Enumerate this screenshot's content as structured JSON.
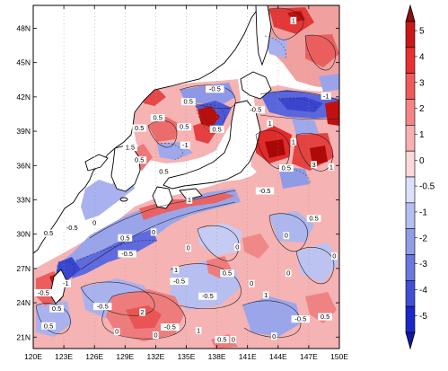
{
  "map": {
    "lon_range": [
      120,
      150
    ],
    "lat_range": [
      20,
      50
    ],
    "lon_ticks": [
      {
        "value": 120,
        "label": "120E"
      },
      {
        "value": 123,
        "label": "123E"
      },
      {
        "value": 126,
        "label": "126E"
      },
      {
        "value": 129,
        "label": "129E"
      },
      {
        "value": 132,
        "label": "132E"
      },
      {
        "value": 135,
        "label": "135E"
      },
      {
        "value": 138,
        "label": "138E"
      },
      {
        "value": 141,
        "label": "141E"
      },
      {
        "value": 144,
        "label": "144E"
      },
      {
        "value": 147,
        "label": "147E"
      },
      {
        "value": 150,
        "label": "150E"
      }
    ],
    "lat_ticks": [
      {
        "value": 21,
        "label": "21N"
      },
      {
        "value": 24,
        "label": "24N"
      },
      {
        "value": 27,
        "label": "27N"
      },
      {
        "value": 30,
        "label": "30N"
      },
      {
        "value": 33,
        "label": "33N"
      },
      {
        "value": 36,
        "label": "36N"
      },
      {
        "value": 39,
        "label": "39N"
      },
      {
        "value": 42,
        "label": "42N"
      },
      {
        "value": 45,
        "label": "45N"
      },
      {
        "value": 48,
        "label": "48N"
      }
    ],
    "contour_labels": [
      {
        "lon": 145.5,
        "lat": 48.6,
        "text": "1"
      },
      {
        "lon": 137.8,
        "lat": 42.6,
        "text": "-0.5"
      },
      {
        "lon": 135.2,
        "lat": 41.5,
        "text": "0.5"
      },
      {
        "lon": 132.2,
        "lat": 40.1,
        "text": "0.5"
      },
      {
        "lon": 130.4,
        "lat": 39.2,
        "text": "0.5"
      },
      {
        "lon": 134.8,
        "lat": 39.3,
        "text": "0.5"
      },
      {
        "lon": 138.0,
        "lat": 39.1,
        "text": "0.5"
      },
      {
        "lon": 129.5,
        "lat": 37.5,
        "text": "1.5"
      },
      {
        "lon": 134.9,
        "lat": 37.7,
        "text": "-1"
      },
      {
        "lon": 130.4,
        "lat": 36.4,
        "text": "0.5"
      },
      {
        "lon": 132.8,
        "lat": 35.4,
        "text": "0.5"
      },
      {
        "lon": 135.3,
        "lat": 32.9,
        "text": "1"
      },
      {
        "lon": 143.2,
        "lat": 39.6,
        "text": "1"
      },
      {
        "lon": 141.8,
        "lat": 40.8,
        "text": "-0.5"
      },
      {
        "lon": 145.5,
        "lat": 38.0,
        "text": "1"
      },
      {
        "lon": 144.8,
        "lat": 35.7,
        "text": "0.5"
      },
      {
        "lon": 147.5,
        "lat": 36.0,
        "text": "3"
      },
      {
        "lon": 148.7,
        "lat": 42.0,
        "text": "-1"
      },
      {
        "lon": 149.2,
        "lat": 35.8,
        "text": "1"
      },
      {
        "lon": 142.7,
        "lat": 33.7,
        "text": "-0.5"
      },
      {
        "lon": 147.5,
        "lat": 31.3,
        "text": "0.5"
      },
      {
        "lon": 149.5,
        "lat": 28.0,
        "text": "0"
      },
      {
        "lon": 121.5,
        "lat": 30.0,
        "text": "0.5"
      },
      {
        "lon": 123.8,
        "lat": 30.5,
        "text": "-0.5"
      },
      {
        "lon": 126.0,
        "lat": 30.9,
        "text": "0"
      },
      {
        "lon": 129.0,
        "lat": 29.6,
        "text": "0.5"
      },
      {
        "lon": 131.8,
        "lat": 30.1,
        "text": "0"
      },
      {
        "lon": 135.2,
        "lat": 28.7,
        "text": "0"
      },
      {
        "lon": 140.0,
        "lat": 28.8,
        "text": "0"
      },
      {
        "lon": 139.0,
        "lat": 26.5,
        "text": "0.5"
      },
      {
        "lon": 134.0,
        "lat": 26.8,
        "text": "1"
      },
      {
        "lon": 130.7,
        "lat": 23.1,
        "text": "2"
      },
      {
        "lon": 133.4,
        "lat": 21.8,
        "text": "-0.5"
      },
      {
        "lon": 132.0,
        "lat": 21.1,
        "text": "0"
      },
      {
        "lon": 134.3,
        "lat": 25.8,
        "text": "-0.5"
      },
      {
        "lon": 137.1,
        "lat": 24.5,
        "text": "-0.5"
      },
      {
        "lon": 141.4,
        "lat": 25.6,
        "text": "0"
      },
      {
        "lon": 136.2,
        "lat": 21.5,
        "text": "1"
      },
      {
        "lon": 138.5,
        "lat": 20.7,
        "text": "0.5"
      },
      {
        "lon": 139.6,
        "lat": 20.7,
        "text": "0"
      },
      {
        "lon": 143.6,
        "lat": 21.0,
        "text": "0"
      },
      {
        "lon": 142.8,
        "lat": 24.6,
        "text": "1"
      },
      {
        "lon": 146.2,
        "lat": 22.5,
        "text": "-0.5"
      },
      {
        "lon": 148.6,
        "lat": 22.7,
        "text": "0.5"
      },
      {
        "lon": 145.0,
        "lat": 26.5,
        "text": "0"
      },
      {
        "lon": 144.8,
        "lat": 29.8,
        "text": "0"
      },
      {
        "lon": 123.2,
        "lat": 25.6,
        "text": "-1"
      },
      {
        "lon": 121.0,
        "lat": 24.8,
        "text": "-0.5"
      },
      {
        "lon": 121.5,
        "lat": 21.9,
        "text": "0.5"
      },
      {
        "lon": 122.3,
        "lat": 23.4,
        "text": "0.5"
      },
      {
        "lon": 126.8,
        "lat": 23.6,
        "text": "-0.5"
      },
      {
        "lon": 128.2,
        "lat": 21.4,
        "text": "0"
      },
      {
        "lon": 129.2,
        "lat": 28.2,
        "text": "-0.5"
      }
    ]
  },
  "colorbar": {
    "levels": [
      "5",
      "4",
      "3",
      "2",
      "1",
      "0",
      "-0.5",
      "-1",
      "-2",
      "-3",
      "-4",
      "-5"
    ],
    "colors": [
      "#c81818",
      "#e83030",
      "#f05a5a",
      "#f58585",
      "#f9b0b0",
      "#fcd9d9",
      "#dce0fa",
      "#b5bff0",
      "#8f9ee6",
      "#6978dc",
      "#4050d4",
      "#1a28c8"
    ],
    "top_arrow_color": "#8e0d0d",
    "bottom_arrow_color": "#0f1aa0"
  },
  "palette": {
    "land": "#ffffff",
    "positive_weak": "#f7b5b5",
    "positive_mid": "#ef7a7a",
    "positive_strong": "#e02a2a",
    "positive_max": "#b80d0d",
    "negative_weak": "#c8ccf2",
    "negative_mid": "#8f9be6",
    "negative_strong": "#4a55d8",
    "neutral": "#f4e6f0"
  }
}
